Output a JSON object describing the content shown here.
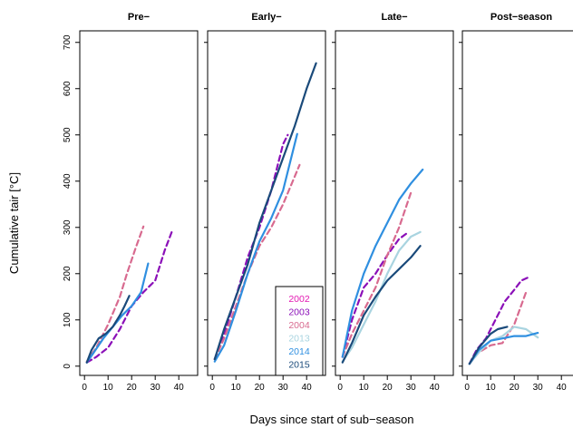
{
  "chart_data": {
    "type": "line",
    "xlabel": "Days since start of sub−season",
    "ylabel": "Cumulative tair [°C]",
    "xlim": [
      -2,
      48
    ],
    "ylim": [
      -20,
      725
    ],
    "x_ticks": [
      0,
      10,
      20,
      30,
      40
    ],
    "y_ticks": [
      0,
      100,
      200,
      300,
      400,
      500,
      600,
      700
    ],
    "tick_labels_x": [
      "0",
      "10",
      "20",
      "30",
      "40"
    ],
    "tick_labels_y": [
      "0",
      "100",
      "200",
      "300",
      "400",
      "500",
      "600",
      "700"
    ],
    "legend": {
      "placement": "bottom-right of Early− panel",
      "entries": [
        {
          "name": "2002",
          "color": "#e41ab3"
        },
        {
          "name": "2003",
          "color": "#8b10b8"
        },
        {
          "name": "2004",
          "color": "#d86a8f"
        },
        {
          "name": "2013",
          "color": "#a9d4e0"
        },
        {
          "name": "2014",
          "color": "#2f8fe0"
        },
        {
          "name": "2015",
          "color": "#1a4a7a"
        }
      ]
    },
    "panels": [
      {
        "title": "Pre−",
        "series": [
          {
            "name": "2003",
            "color": "#8b10b8",
            "dashed": true,
            "points": [
              [
                1,
                8
              ],
              [
                5,
                20
              ],
              [
                10,
                40
              ],
              [
                15,
                80
              ],
              [
                20,
                130
              ],
              [
                25,
                160
              ],
              [
                30,
                185
              ],
              [
                34,
                250
              ],
              [
                37,
                290
              ]
            ]
          },
          {
            "name": "2004",
            "color": "#d86a8f",
            "dashed": true,
            "points": [
              [
                1,
                10
              ],
              [
                5,
                40
              ],
              [
                10,
                90
              ],
              [
                15,
                150
              ],
              [
                18,
                200
              ],
              [
                22,
                260
              ],
              [
                25,
                302
              ]
            ]
          },
          {
            "name": "2014",
            "color": "#2f8fe0",
            "dashed": false,
            "points": [
              [
                1,
                8
              ],
              [
                4,
                30
              ],
              [
                8,
                60
              ],
              [
                12,
                85
              ],
              [
                16,
                110
              ],
              [
                20,
                130
              ],
              [
                24,
                160
              ],
              [
                27,
                222
              ]
            ]
          },
          {
            "name": "2015",
            "color": "#1a4a7a",
            "dashed": false,
            "points": [
              [
                1,
                8
              ],
              [
                3,
                35
              ],
              [
                6,
                60
              ],
              [
                9,
                70
              ],
              [
                12,
                85
              ],
              [
                15,
                110
              ],
              [
                17,
                130
              ],
              [
                19,
                152
              ]
            ]
          }
        ]
      },
      {
        "title": "Early−",
        "series": [
          {
            "name": "2003",
            "color": "#8b10b8",
            "dashed": true,
            "points": [
              [
                1,
                15
              ],
              [
                5,
                70
              ],
              [
                10,
                150
              ],
              [
                15,
                235
              ],
              [
                20,
                300
              ],
              [
                25,
                380
              ],
              [
                30,
                480
              ],
              [
                32,
                500
              ]
            ]
          },
          {
            "name": "2004",
            "color": "#d86a8f",
            "dashed": true,
            "points": [
              [
                1,
                15
              ],
              [
                5,
                60
              ],
              [
                10,
                130
              ],
              [
                15,
                200
              ],
              [
                20,
                260
              ],
              [
                25,
                300
              ],
              [
                30,
                350
              ],
              [
                37,
                435
              ]
            ]
          },
          {
            "name": "2014",
            "color": "#2f8fe0",
            "dashed": false,
            "points": [
              [
                1,
                10
              ],
              [
                5,
                45
              ],
              [
                10,
                120
              ],
              [
                15,
                200
              ],
              [
                20,
                270
              ],
              [
                25,
                320
              ],
              [
                30,
                380
              ],
              [
                36,
                502
              ]
            ]
          },
          {
            "name": "2015",
            "color": "#1a4a7a",
            "dashed": false,
            "points": [
              [
                1,
                15
              ],
              [
                5,
                80
              ],
              [
                10,
                150
              ],
              [
                15,
                220
              ],
              [
                20,
                310
              ],
              [
                25,
                380
              ],
              [
                30,
                450
              ],
              [
                35,
                520
              ],
              [
                40,
                600
              ],
              [
                44,
                655
              ]
            ]
          }
        ]
      },
      {
        "title": "Late−",
        "series": [
          {
            "name": "2003",
            "color": "#8b10b8",
            "dashed": true,
            "points": [
              [
                1,
                20
              ],
              [
                5,
                100
              ],
              [
                10,
                170
              ],
              [
                15,
                200
              ],
              [
                20,
                240
              ],
              [
                25,
                275
              ],
              [
                29,
                290
              ]
            ]
          },
          {
            "name": "2004",
            "color": "#d86a8f",
            "dashed": true,
            "points": [
              [
                1,
                20
              ],
              [
                5,
                70
              ],
              [
                10,
                120
              ],
              [
                15,
                170
              ],
              [
                20,
                240
              ],
              [
                25,
                300
              ],
              [
                30,
                375
              ]
            ]
          },
          {
            "name": "2013",
            "color": "#a9d4e0",
            "dashed": false,
            "points": [
              [
                1,
                10
              ],
              [
                5,
                40
              ],
              [
                10,
                90
              ],
              [
                15,
                140
              ],
              [
                20,
                200
              ],
              [
                25,
                250
              ],
              [
                30,
                280
              ],
              [
                34,
                290
              ]
            ]
          },
          {
            "name": "2014",
            "color": "#2f8fe0",
            "dashed": false,
            "points": [
              [
                1,
                20
              ],
              [
                5,
                120
              ],
              [
                10,
                200
              ],
              [
                15,
                260
              ],
              [
                20,
                310
              ],
              [
                25,
                360
              ],
              [
                30,
                395
              ],
              [
                35,
                425
              ]
            ]
          },
          {
            "name": "2015",
            "color": "#1a4a7a",
            "dashed": false,
            "points": [
              [
                1,
                8
              ],
              [
                5,
                50
              ],
              [
                10,
                110
              ],
              [
                15,
                150
              ],
              [
                20,
                185
              ],
              [
                25,
                210
              ],
              [
                30,
                235
              ],
              [
                34,
                260
              ]
            ]
          }
        ]
      },
      {
        "title": "Post−season",
        "series": [
          {
            "name": "2003",
            "color": "#8b10b8",
            "dashed": true,
            "points": [
              [
                1,
                5
              ],
              [
                4,
                35
              ],
              [
                8,
                60
              ],
              [
                12,
                100
              ],
              [
                16,
                140
              ],
              [
                20,
                165
              ],
              [
                23,
                185
              ],
              [
                26,
                192
              ]
            ]
          },
          {
            "name": "2004",
            "color": "#d86a8f",
            "dashed": true,
            "points": [
              [
                1,
                5
              ],
              [
                5,
                30
              ],
              [
                10,
                45
              ],
              [
                15,
                50
              ],
              [
                20,
                90
              ],
              [
                25,
                160
              ]
            ]
          },
          {
            "name": "2013",
            "color": "#a9d4e0",
            "dashed": false,
            "points": [
              [
                1,
                5
              ],
              [
                5,
                30
              ],
              [
                10,
                55
              ],
              [
                15,
                65
              ],
              [
                20,
                85
              ],
              [
                25,
                80
              ],
              [
                30,
                62
              ]
            ]
          },
          {
            "name": "2014",
            "color": "#2f8fe0",
            "dashed": false,
            "points": [
              [
                1,
                5
              ],
              [
                5,
                35
              ],
              [
                10,
                55
              ],
              [
                15,
                60
              ],
              [
                20,
                65
              ],
              [
                25,
                65
              ],
              [
                30,
                72
              ]
            ]
          },
          {
            "name": "2015",
            "color": "#1a4a7a",
            "dashed": false,
            "points": [
              [
                1,
                5
              ],
              [
                5,
                40
              ],
              [
                10,
                70
              ],
              [
                13,
                80
              ],
              [
                17,
                85
              ]
            ]
          }
        ]
      }
    ]
  }
}
